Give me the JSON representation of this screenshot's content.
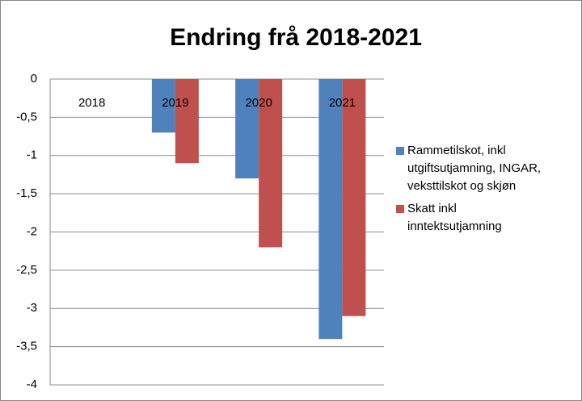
{
  "chart_data": {
    "type": "bar",
    "title": "Endring frå 2018-2021",
    "categories": [
      "2018",
      "2019",
      "2020",
      "2021"
    ],
    "series": [
      {
        "name": "Rammetilskot, inkl utgiftsutjamning, INGAR, veksttilskot og skjøn",
        "color": "#4f81bd",
        "values": [
          0,
          -0.7,
          -1.3,
          -3.4
        ]
      },
      {
        "name": "Skatt inkl inntektsutjamning",
        "color": "#c0504d",
        "values": [
          0,
          -1.1,
          -2.2,
          -3.1
        ]
      }
    ],
    "ylim": [
      0,
      -4
    ],
    "yticks": [
      0,
      {
        "value": -0.5,
        "label": "-0,5"
      },
      -1,
      {
        "value": -1.5,
        "label": "-1,5"
      },
      -2,
      {
        "value": -2.5,
        "label": "-2,5"
      },
      -3,
      {
        "value": -3.5,
        "label": "-3,5"
      },
      -4
    ],
    "grid": true,
    "legend": "right"
  }
}
